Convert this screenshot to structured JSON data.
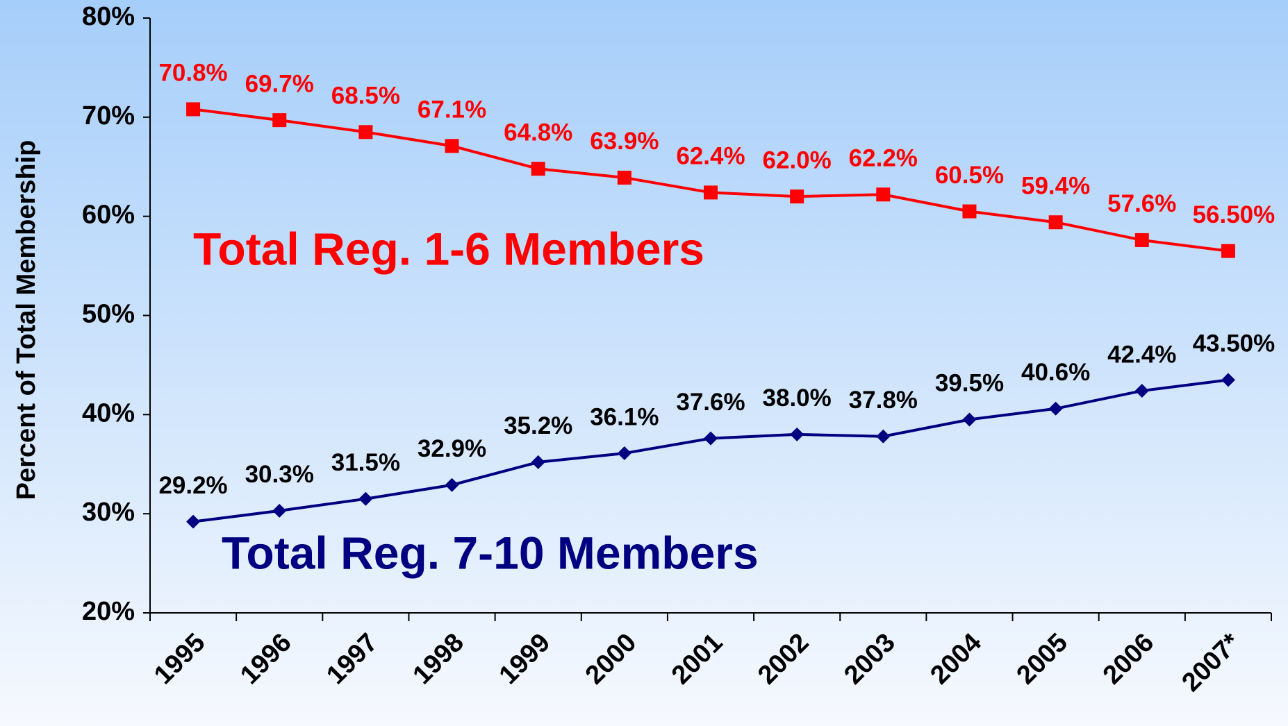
{
  "chart_data": {
    "type": "line",
    "y_label": "Percent of Total Membership",
    "categories": [
      "1995",
      "1996",
      "1997",
      "1998",
      "1999",
      "2000",
      "2001",
      "2002",
      "2003",
      "2004",
      "2005",
      "2006",
      "2007*"
    ],
    "series": [
      {
        "name": "Total Reg. 1-6 Members",
        "color": "#ff0000",
        "marker": "square",
        "values": [
          70.8,
          69.7,
          68.5,
          67.1,
          64.8,
          63.9,
          62.4,
          62.0,
          62.2,
          60.5,
          59.4,
          57.6,
          56.5
        ],
        "value_labels": [
          "70.8%",
          "69.7%",
          "68.5%",
          "67.1%",
          "64.8%",
          "63.9%",
          "62.4%",
          "62.0%",
          "62.2%",
          "60.5%",
          "59.4%",
          "57.6%",
          "56.50%"
        ]
      },
      {
        "name": "Total Reg. 7-10 Members",
        "color": "#000080",
        "marker": "diamond",
        "values": [
          29.2,
          30.3,
          31.5,
          32.9,
          35.2,
          36.1,
          37.6,
          38.0,
          37.8,
          39.5,
          40.6,
          42.4,
          43.5
        ],
        "value_labels": [
          "29.2%",
          "30.3%",
          "31.5%",
          "32.9%",
          "35.2%",
          "36.1%",
          "37.6%",
          "38.0%",
          "37.8%",
          "39.5%",
          "40.6%",
          "42.4%",
          "43.50%"
        ]
      }
    ],
    "ylim": [
      20,
      80
    ],
    "yticks": [
      {
        "value": 20,
        "label": "20%"
      },
      {
        "value": 30,
        "label": "30%"
      },
      {
        "value": 40,
        "label": "40%"
      },
      {
        "value": 50,
        "label": "50%"
      },
      {
        "value": 60,
        "label": "60%"
      },
      {
        "value": 70,
        "label": "70%"
      },
      {
        "value": 80,
        "label": "80%"
      }
    ],
    "grid": false
  }
}
